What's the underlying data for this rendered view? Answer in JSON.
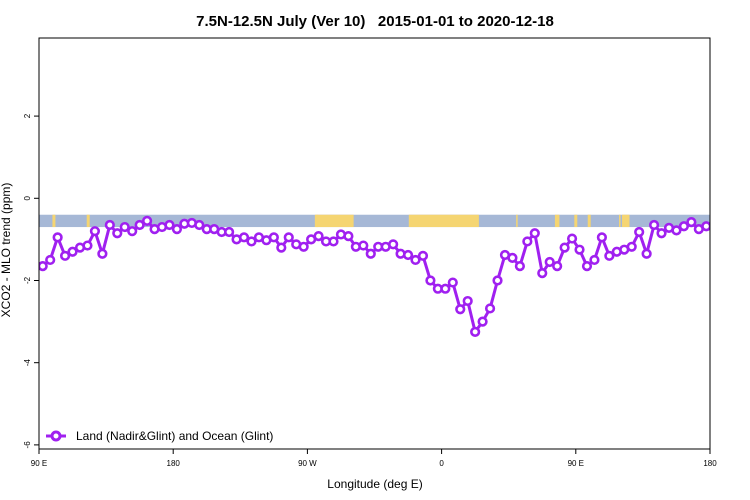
{
  "chart_data": {
    "type": "line",
    "title": "7.5N-12.5N July (Ver 10)   2015-01-01 to 2020-12-18",
    "xlabel": "Longitude (deg E)",
    "ylabel": "XCO2 - MLO trend (ppm)",
    "xlim": [
      90,
      540
    ],
    "ylim": [
      -6.1,
      3.9
    ],
    "x_ticks": [
      {
        "value": 90,
        "label": "90 E"
      },
      {
        "value": 180,
        "label": "180"
      },
      {
        "value": 270,
        "label": "90 W"
      },
      {
        "value": 360,
        "label": "0"
      },
      {
        "value": 450,
        "label": "90 E"
      },
      {
        "value": 540,
        "label": "180"
      }
    ],
    "y_ticks": [
      {
        "value": -6,
        "label": "-6"
      },
      {
        "value": -4,
        "label": "-4"
      },
      {
        "value": -2,
        "label": "-2"
      },
      {
        "value": 0,
        "label": "0"
      },
      {
        "value": 2,
        "label": "2"
      }
    ],
    "grid": false,
    "legend": {
      "position": "bottom-left",
      "entries": [
        "Land (Nadir&Glint) and Ocean (Glint)"
      ]
    },
    "colors": {
      "series": "#a020f0",
      "ocean": "#a6b8d6",
      "land": "#f5d572"
    },
    "land_strip": {
      "y_range": [
        -0.7,
        -0.4
      ],
      "land_segments": [
        [
          99,
          101
        ],
        [
          122,
          124
        ],
        [
          275,
          277
        ],
        [
          276,
          301
        ],
        [
          338,
          385
        ],
        [
          410,
          411
        ],
        [
          436,
          439
        ],
        [
          449,
          451
        ],
        [
          458,
          460
        ],
        [
          479,
          480
        ],
        [
          481,
          486
        ]
      ]
    },
    "series": [
      {
        "name": "Land (Nadir&Glint) and Ocean (Glint)",
        "x": [
          92.5,
          97.5,
          102.5,
          107.5,
          112.5,
          117.5,
          122.5,
          127.5,
          132.5,
          137.5,
          142.5,
          147.5,
          152.5,
          157.5,
          162.5,
          167.5,
          172.5,
          177.5,
          182.5,
          187.5,
          192.5,
          197.5,
          202.5,
          207.5,
          212.5,
          217.5,
          222.5,
          227.5,
          232.5,
          237.5,
          242.5,
          247.5,
          252.5,
          257.5,
          262.5,
          267.5,
          272.5,
          277.5,
          282.5,
          287.5,
          292.5,
          297.5,
          302.5,
          307.5,
          312.5,
          317.5,
          322.5,
          327.5,
          332.5,
          337.5,
          342.5,
          347.5,
          352.5,
          357.5,
          362.5,
          367.5,
          372.5,
          377.5,
          382.5,
          387.5,
          392.5,
          397.5,
          402.5,
          407.5,
          412.5,
          417.5,
          422.5,
          427.5,
          432.5,
          437.5,
          442.5,
          447.5,
          452.5,
          457.5,
          462.5,
          467.5,
          472.5,
          477.5,
          482.5,
          487.5,
          492.5,
          497.5,
          502.5,
          507.5,
          512.5,
          517.5,
          522.5,
          527.5,
          532.5,
          537.5
        ],
        "values": [
          -1.65,
          -1.5,
          -0.95,
          -1.4,
          -1.3,
          -1.2,
          -1.15,
          -0.8,
          -1.35,
          -0.65,
          -0.85,
          -0.7,
          -0.8,
          -0.65,
          -0.55,
          -0.75,
          -0.7,
          -0.65,
          -0.75,
          -0.62,
          -0.6,
          -0.65,
          -0.75,
          -0.75,
          -0.82,
          -0.82,
          -1.0,
          -0.95,
          -1.05,
          -0.95,
          -1.02,
          -0.95,
          -1.2,
          -0.95,
          -1.12,
          -1.18,
          -1.0,
          -0.92,
          -1.05,
          -1.05,
          -0.88,
          -0.92,
          -1.18,
          -1.15,
          -1.35,
          -1.18,
          -1.18,
          -1.12,
          -1.35,
          -1.38,
          -1.5,
          -1.4,
          -2.0,
          -2.2,
          -2.2,
          -2.05,
          -2.7,
          -2.5,
          -3.25,
          -3.0,
          -2.68,
          -2.0,
          -1.38,
          -1.45,
          -1.65,
          -1.05,
          -0.85,
          -1.82,
          -1.55,
          -1.65,
          -1.2,
          -0.98,
          -1.25,
          -1.65,
          -1.5,
          -0.95,
          -1.4,
          -1.3,
          -1.25,
          -1.18,
          -0.82,
          -1.35,
          -0.65,
          -0.85,
          -0.72,
          -0.78,
          -0.68,
          -0.58,
          -0.75,
          -0.68
        ]
      }
    ]
  }
}
